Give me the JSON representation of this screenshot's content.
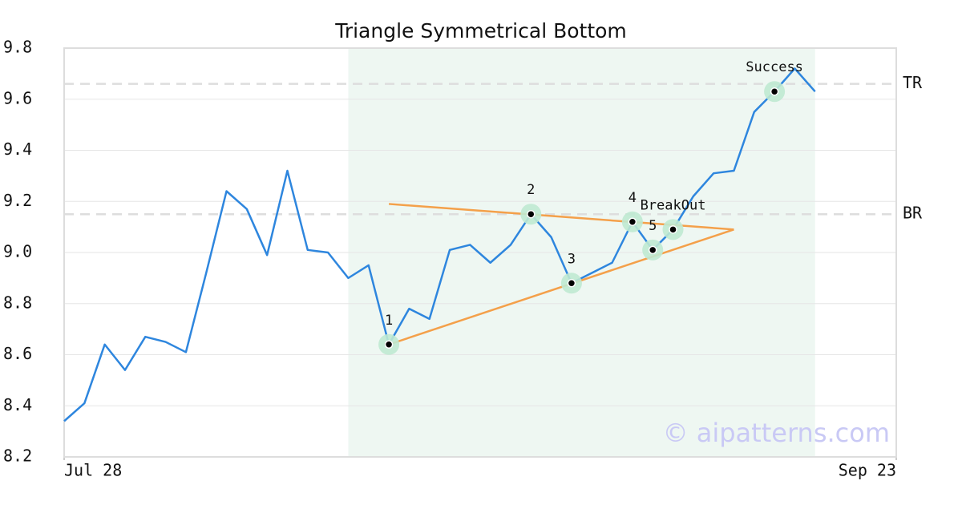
{
  "chart_data": {
    "type": "line",
    "title": "Triangle Symmetrical Bottom",
    "x": [
      0,
      1,
      2,
      3,
      4,
      5,
      6,
      7,
      8,
      9,
      10,
      11,
      12,
      13,
      14,
      15,
      16,
      17,
      18,
      19,
      20,
      21,
      22,
      23,
      24,
      25,
      26,
      27,
      28,
      29,
      30,
      31,
      32,
      33,
      34,
      35,
      36,
      37
    ],
    "series": [
      {
        "color": "#2e86de",
        "values": [
          8.34,
          8.41,
          8.64,
          8.54,
          8.67,
          8.65,
          8.61,
          8.92,
          9.24,
          9.17,
          8.99,
          9.32,
          9.01,
          9.0,
          8.9,
          8.95,
          8.64,
          8.78,
          8.74,
          9.01,
          9.03,
          8.96,
          9.03,
          9.15,
          9.06,
          8.88,
          8.92,
          8.96,
          9.12,
          9.01,
          9.09,
          9.22,
          9.31,
          9.32,
          9.55,
          9.63,
          9.72,
          9.63
        ]
      }
    ],
    "xlim": [
      0,
      41
    ],
    "xticks": [
      {
        "value": 0,
        "label": "Jul 28"
      },
      {
        "value": 41,
        "label": "Sep 23"
      }
    ],
    "ylim": [
      8.2,
      9.8
    ],
    "yticks": [
      8.2,
      8.4,
      8.6,
      8.8,
      {
        "value": 9,
        "label": "9.0"
      },
      9.2,
      9.4,
      9.6,
      9.8
    ],
    "grid": true,
    "highlight": [
      14,
      37
    ],
    "highlight_color": "#eef7f2",
    "trendline_color": "#f4a04a",
    "trendlines": [
      {
        "x": [
          16,
          33
        ],
        "y": [
          9.19,
          9.09
        ]
      },
      {
        "x": [
          16,
          33
        ],
        "y": [
          8.64,
          9.09
        ]
      }
    ],
    "hlines": [
      {
        "label": "TR",
        "value": 9.66
      },
      {
        "label": "BR",
        "value": 9.15
      }
    ],
    "annotations": [
      {
        "label": "1",
        "x": 16,
        "y": 8.64
      },
      {
        "label": "2",
        "x": 23,
        "y": 9.15
      },
      {
        "label": "3",
        "x": 25,
        "y": 8.88
      },
      {
        "label": "4",
        "x": 28,
        "y": 9.12
      },
      {
        "label": "5",
        "x": 29,
        "y": 9.01
      },
      {
        "label": "BreakOut",
        "x": 30,
        "y": 9.09
      },
      {
        "label": "Success",
        "x": 35,
        "y": 9.63
      }
    ],
    "watermark": "© aipatterns.com"
  }
}
